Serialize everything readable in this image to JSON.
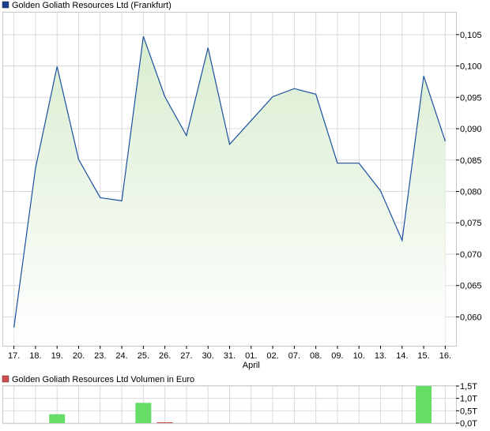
{
  "colors": {
    "price_line": "#1a4fa0",
    "area_top": "#d9edcf",
    "area_bottom": "#ffffff",
    "price_legend": "#1a3f8f",
    "volume_bar": "#66dd66",
    "volume_small_bar": "#cc4444",
    "volume_legend": "#d34a4a",
    "grid": "#d9d9d9",
    "frame": "#c8c8c8"
  },
  "chart_data": [
    {
      "type": "area",
      "legend": "Golden Goliath Resources Ltd (Frankfurt)",
      "categories": [
        "17.",
        "18.",
        "19.",
        "20.",
        "23.",
        "24.",
        "25.",
        "26.",
        "27.",
        "30.",
        "31.",
        "01.",
        "02.",
        "07.",
        "08.",
        "09.",
        "10.",
        "13.",
        "14.",
        "15.",
        "16."
      ],
      "x_month_label": "April",
      "x_month_label_at": "01.",
      "values": [
        0.0583,
        0.0837,
        0.0999,
        0.0851,
        0.079,
        0.0785,
        0.1047,
        0.0951,
        0.0889,
        0.1029,
        0.0875,
        0.0913,
        0.0951,
        0.0964,
        0.0955,
        0.0845,
        0.0845,
        0.0801,
        0.0722,
        0.0984,
        0.088
      ],
      "ylim": [
        0.0554,
        0.1085
      ],
      "yticks": [
        0.06,
        0.065,
        0.07,
        0.075,
        0.08,
        0.085,
        0.09,
        0.095,
        0.1,
        0.105
      ],
      "ytick_labels": [
        "0,060",
        "0,065",
        "0,070",
        "0,075",
        "0,080",
        "0,085",
        "0,090",
        "0,095",
        "0,100",
        "0,105"
      ],
      "grid": true,
      "y_axis_side": "right"
    },
    {
      "type": "bar",
      "legend": "Golden Goliath Resources Ltd Volumen in Euro",
      "categories": [
        "17.",
        "18.",
        "19.",
        "20.",
        "23.",
        "24.",
        "25.",
        "26.",
        "27.",
        "30.",
        "31.",
        "01.",
        "02.",
        "07.",
        "08.",
        "09.",
        "10.",
        "13.",
        "14.",
        "15.",
        "16."
      ],
      "values": [
        0,
        0,
        0.36,
        0,
        0,
        0,
        0.82,
        0.02,
        0,
        0,
        0,
        0,
        0,
        0,
        0,
        0,
        0,
        0,
        0,
        1.5,
        0
      ],
      "unit": "T",
      "ylim": [
        0,
        1.5
      ],
      "yticks": [
        0,
        0.5,
        1.0,
        1.5
      ],
      "ytick_labels": [
        "0,0T",
        "0,5T",
        "1,0T",
        "1,5T"
      ],
      "grid": true,
      "y_axis_side": "right"
    }
  ]
}
